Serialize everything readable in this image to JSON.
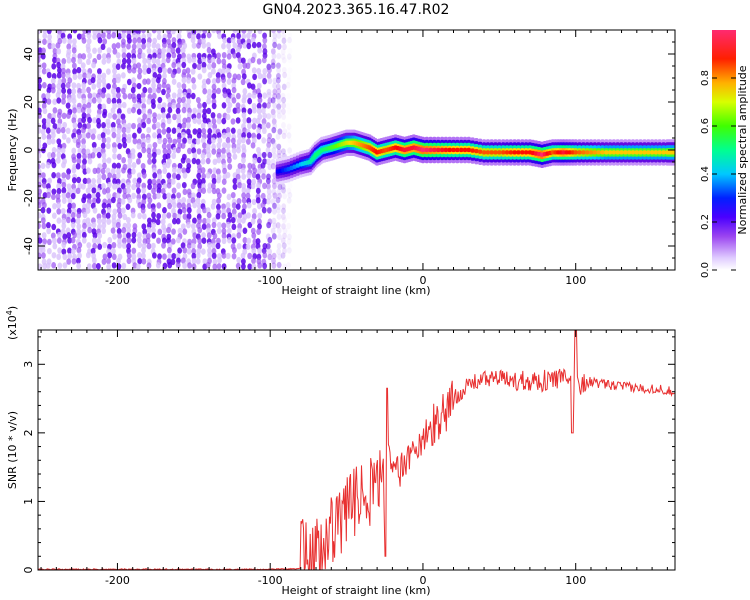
{
  "figure_title": "GN04.2023.365.16.47.R02",
  "chart_data": [
    {
      "type": "heatmap",
      "xlabel": "Height of straight line (km)",
      "ylabel": "Frequency (Hz)",
      "xlim": [
        -252,
        165
      ],
      "ylim": [
        -50,
        50
      ],
      "xticks": [
        -200,
        -100,
        0,
        100
      ],
      "yticks": [
        -40,
        -20,
        0,
        20,
        40
      ],
      "colorbar": {
        "label": "Normalized spectral amplitude",
        "range": [
          0,
          1
        ],
        "ticks": [
          0.0,
          0.2,
          0.4,
          0.6,
          0.8
        ],
        "colormap": [
          "#ffffff",
          "#e8d8ff",
          "#9b45f0",
          "#5a00e0",
          "#0000ff",
          "#00c8ff",
          "#00ff80",
          "#60ff00",
          "#ffe000",
          "#ff7a00",
          "#ff0000",
          "#ff2a70"
        ]
      },
      "noise_region": {
        "x_range": [
          -252,
          -87
        ],
        "amplitude": 0.35
      },
      "ridge": [
        {
          "x": -95,
          "y": -9,
          "v": 0.3
        },
        {
          "x": -88,
          "y": -8,
          "v": 0.35
        },
        {
          "x": -80,
          "y": -6,
          "v": 0.4
        },
        {
          "x": -74,
          "y": -5,
          "v": 0.45
        },
        {
          "x": -70,
          "y": -2,
          "v": 0.5
        },
        {
          "x": -66,
          "y": 0,
          "v": 0.5
        },
        {
          "x": -60,
          "y": 1,
          "v": 0.55
        },
        {
          "x": -55,
          "y": 2,
          "v": 0.6
        },
        {
          "x": -50,
          "y": 3,
          "v": 0.65
        },
        {
          "x": -45,
          "y": 3,
          "v": 0.7
        },
        {
          "x": -40,
          "y": 2,
          "v": 0.75
        },
        {
          "x": -35,
          "y": 1,
          "v": 0.8
        },
        {
          "x": -30,
          "y": -1,
          "v": 0.85
        },
        {
          "x": -24,
          "y": 0,
          "v": 0.8
        },
        {
          "x": -18,
          "y": 1,
          "v": 0.85
        },
        {
          "x": -12,
          "y": 0,
          "v": 0.9
        },
        {
          "x": -6,
          "y": 1,
          "v": 0.9
        },
        {
          "x": 0,
          "y": 0,
          "v": 0.95
        },
        {
          "x": 10,
          "y": 0,
          "v": 0.9
        },
        {
          "x": 20,
          "y": 0,
          "v": 0.85
        },
        {
          "x": 30,
          "y": 0,
          "v": 0.85
        },
        {
          "x": 40,
          "y": -1,
          "v": 0.8
        },
        {
          "x": 50,
          "y": -1,
          "v": 0.8
        },
        {
          "x": 60,
          "y": -1,
          "v": 0.85
        },
        {
          "x": 70,
          "y": -1,
          "v": 0.85
        },
        {
          "x": 78,
          "y": -2,
          "v": 0.95
        },
        {
          "x": 85,
          "y": -1,
          "v": 0.8
        },
        {
          "x": 92,
          "y": -1,
          "v": 0.9
        },
        {
          "x": 100,
          "y": -1,
          "v": 0.8
        },
        {
          "x": 110,
          "y": -1,
          "v": 0.75
        },
        {
          "x": 120,
          "y": -1,
          "v": 0.7
        },
        {
          "x": 130,
          "y": -1,
          "v": 0.7
        },
        {
          "x": 140,
          "y": -1,
          "v": 0.7
        },
        {
          "x": 150,
          "y": -1,
          "v": 0.7
        },
        {
          "x": 160,
          "y": -1,
          "v": 0.7
        },
        {
          "x": 165,
          "y": -1,
          "v": 0.7
        }
      ]
    },
    {
      "type": "line",
      "xlabel": "Height of straight line (km)",
      "ylabel": "SNR (10 * v/v)",
      "y_multiplier_label": "(x10",
      "y_multiplier_exp": "4",
      "y_multiplier_close": ")",
      "xlim": [
        -252,
        165
      ],
      "ylim": [
        0,
        3.5
      ],
      "xticks": [
        -200,
        -100,
        0,
        100
      ],
      "yticks": [
        0,
        1,
        2,
        3
      ],
      "series": [
        {
          "color": "#e83030",
          "x": [
            -252,
            -200,
            -150,
            -100,
            -80,
            -70,
            -65,
            -60,
            -55,
            -50,
            -45,
            -40,
            -35,
            -30,
            -25,
            -20,
            -15,
            -10,
            -5,
            0,
            5,
            10,
            15,
            20,
            25,
            30,
            35,
            40,
            45,
            50,
            55,
            60,
            65,
            70,
            75,
            80,
            85,
            90,
            95,
            100,
            105,
            110,
            115,
            120,
            130,
            140,
            150,
            160,
            165
          ],
          "y": [
            0.01,
            0.01,
            0.01,
            0.01,
            0.02,
            0.05,
            0.15,
            0.35,
            0.5,
            0.65,
            0.75,
            0.85,
            0.95,
            1.05,
            1.15,
            1.25,
            1.35,
            1.5,
            1.7,
            1.85,
            2.0,
            2.2,
            2.35,
            2.5,
            2.6,
            2.7,
            2.75,
            2.78,
            2.8,
            2.8,
            2.78,
            2.75,
            2.77,
            2.78,
            2.75,
            2.76,
            2.78,
            2.8,
            2.75,
            2.7,
            2.72,
            2.75,
            2.72,
            2.7,
            2.68,
            2.65,
            2.65,
            2.62,
            2.6
          ]
        }
      ]
    }
  ]
}
